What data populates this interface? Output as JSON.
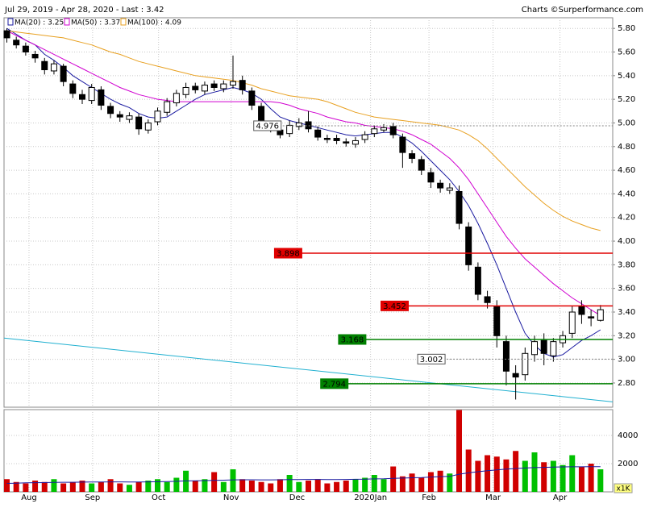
{
  "chart_data": [
    {
      "type": "candlestick",
      "title": "Jul 29, 2019 - Apr 28, 2020 - Last : 3.42",
      "credit": "Charts ©Surperformance.com",
      "xlim": [
        -0.3,
        64.3
      ],
      "xticks": [
        {
          "value": 2.35,
          "label": "Aug"
        },
        {
          "value": 9.1,
          "label": "Sep"
        },
        {
          "value": 16.1,
          "label": "Oct"
        },
        {
          "value": 23.8,
          "label": "Nov"
        },
        {
          "value": 30.8,
          "label": "Dec"
        },
        {
          "value": 38.6,
          "label": "2020Jan"
        },
        {
          "value": 44.8,
          "label": "Feb"
        },
        {
          "value": 51.6,
          "label": "Mar"
        },
        {
          "value": 58.7,
          "label": "Apr"
        }
      ],
      "ylim": [
        2.595,
        5.89
      ],
      "yticks": [
        {
          "value": 2.8,
          "label": "2.80"
        },
        {
          "value": 3.0,
          "label": "3.00"
        },
        {
          "value": 3.2,
          "label": "3.20"
        },
        {
          "value": 3.4,
          "label": "3.40"
        },
        {
          "value": 3.6,
          "label": "3.60"
        },
        {
          "value": 3.8,
          "label": "3.80"
        },
        {
          "value": 4.0,
          "label": "4.00"
        },
        {
          "value": 4.2,
          "label": "4.20"
        },
        {
          "value": 4.4,
          "label": "4.40"
        },
        {
          "value": 4.6,
          "label": "4.60"
        },
        {
          "value": 4.8,
          "label": "4.80"
        },
        {
          "value": 5.0,
          "label": "5.00"
        },
        {
          "value": 5.2,
          "label": "5.20"
        },
        {
          "value": 5.4,
          "label": "5.40"
        },
        {
          "value": 5.6,
          "label": "5.60"
        },
        {
          "value": 5.8,
          "label": "5.80"
        }
      ],
      "grid": true,
      "up_color": "#00c000",
      "down_color": "#d00000",
      "open": [
        5.78,
        5.7,
        5.65,
        5.58,
        5.52,
        5.44,
        5.48,
        5.33,
        5.24,
        5.19,
        5.28,
        5.14,
        5.07,
        5.03,
        5.05,
        4.94,
        5.01,
        5.09,
        5.17,
        5.24,
        5.31,
        5.27,
        5.33,
        5.29,
        5.32,
        5.36,
        5.27,
        5.14,
        4.99,
        4.94,
        4.91,
        4.97,
        5.01,
        4.94,
        4.87,
        4.87,
        4.84,
        4.82,
        4.86,
        4.91,
        4.94,
        4.97,
        4.88,
        4.74,
        4.69,
        4.58,
        4.49,
        4.43,
        4.42,
        4.12,
        3.78,
        3.53,
        3.45,
        3.15,
        2.88,
        2.87,
        3.04,
        3.16,
        3.03,
        3.14,
        3.22,
        3.45,
        3.36,
        3.33
      ],
      "high": [
        5.8,
        5.73,
        5.68,
        5.61,
        5.55,
        5.53,
        5.5,
        5.36,
        5.28,
        5.33,
        5.31,
        5.17,
        5.1,
        5.09,
        5.08,
        5.03,
        5.13,
        5.21,
        5.28,
        5.34,
        5.34,
        5.35,
        5.36,
        5.36,
        5.57,
        5.4,
        5.3,
        5.17,
        5.02,
        4.97,
        5.02,
        5.04,
        5.1,
        4.97,
        4.9,
        4.9,
        4.87,
        4.88,
        4.93,
        4.98,
        4.99,
        5.0,
        4.91,
        4.77,
        4.72,
        4.62,
        4.52,
        4.49,
        4.47,
        4.16,
        3.82,
        3.58,
        3.5,
        3.2,
        2.95,
        3.1,
        3.2,
        3.22,
        3.18,
        3.24,
        3.45,
        3.5,
        3.42,
        3.46
      ],
      "low": [
        5.68,
        5.63,
        5.57,
        5.51,
        5.41,
        5.41,
        5.31,
        5.21,
        5.16,
        5.16,
        5.11,
        5.04,
        5.01,
        5.0,
        4.9,
        4.91,
        4.98,
        5.06,
        5.14,
        5.21,
        5.25,
        5.24,
        5.27,
        5.26,
        5.29,
        5.24,
        5.11,
        4.96,
        4.92,
        4.87,
        4.88,
        4.94,
        4.92,
        4.85,
        4.83,
        4.82,
        4.8,
        4.79,
        4.83,
        4.88,
        4.92,
        4.87,
        4.62,
        4.66,
        4.56,
        4.45,
        4.41,
        4.4,
        4.1,
        3.75,
        3.5,
        3.43,
        3.1,
        2.78,
        2.66,
        2.82,
        2.98,
        2.95,
        2.98,
        3.1,
        3.18,
        3.3,
        3.28,
        3.32
      ],
      "close": [
        5.72,
        5.66,
        5.6,
        5.55,
        5.45,
        5.5,
        5.35,
        5.25,
        5.2,
        5.3,
        5.15,
        5.08,
        5.05,
        5.06,
        4.95,
        5.0,
        5.1,
        5.18,
        5.25,
        5.3,
        5.28,
        5.32,
        5.3,
        5.33,
        5.35,
        5.28,
        5.15,
        5.0,
        4.95,
        4.9,
        4.98,
        5.0,
        4.95,
        4.88,
        4.86,
        4.85,
        4.83,
        4.85,
        4.9,
        4.95,
        4.96,
        4.9,
        4.75,
        4.7,
        4.6,
        4.5,
        4.45,
        4.45,
        4.15,
        3.8,
        3.55,
        3.48,
        3.2,
        2.9,
        2.85,
        3.05,
        3.15,
        3.05,
        3.15,
        3.2,
        3.4,
        3.38,
        3.35,
        3.42
      ],
      "series": [
        {
          "name": "MA(20) : 3.25",
          "color": "#1a1aa0",
          "values": [
            5.8,
            5.75,
            5.7,
            5.66,
            5.58,
            5.53,
            5.47,
            5.4,
            5.35,
            5.3,
            5.25,
            5.2,
            5.16,
            5.13,
            5.08,
            5.05,
            5.04,
            5.05,
            5.1,
            5.15,
            5.2,
            5.24,
            5.26,
            5.28,
            5.3,
            5.28,
            5.25,
            5.2,
            5.12,
            5.05,
            5.02,
            5.0,
            4.98,
            4.96,
            4.94,
            4.92,
            4.9,
            4.89,
            4.9,
            4.91,
            4.92,
            4.92,
            4.88,
            4.83,
            4.76,
            4.68,
            4.6,
            4.52,
            4.42,
            4.3,
            4.15,
            3.98,
            3.8,
            3.6,
            3.4,
            3.22,
            3.12,
            3.05,
            3.02,
            3.04,
            3.1,
            3.16,
            3.2,
            3.25
          ]
        },
        {
          "name": "MA(50) : 3.37",
          "color": "#d000d0",
          "values": [
            5.78,
            5.74,
            5.7,
            5.66,
            5.62,
            5.58,
            5.54,
            5.5,
            5.46,
            5.42,
            5.38,
            5.34,
            5.3,
            5.27,
            5.24,
            5.22,
            5.2,
            5.19,
            5.18,
            5.18,
            5.18,
            5.18,
            5.18,
            5.18,
            5.18,
            5.18,
            5.18,
            5.18,
            5.18,
            5.17,
            5.15,
            5.12,
            5.1,
            5.08,
            5.05,
            5.03,
            5.01,
            5.0,
            4.98,
            4.97,
            4.96,
            4.95,
            4.93,
            4.9,
            4.86,
            4.82,
            4.76,
            4.7,
            4.62,
            4.52,
            4.4,
            4.28,
            4.16,
            4.04,
            3.94,
            3.85,
            3.78,
            3.71,
            3.64,
            3.58,
            3.52,
            3.47,
            3.42,
            3.37
          ]
        },
        {
          "name": "MA(100) : 4.09",
          "color": "#e8a020",
          "values": [
            5.78,
            5.77,
            5.76,
            5.75,
            5.74,
            5.73,
            5.72,
            5.7,
            5.68,
            5.66,
            5.63,
            5.6,
            5.58,
            5.55,
            5.52,
            5.5,
            5.48,
            5.46,
            5.44,
            5.42,
            5.4,
            5.39,
            5.38,
            5.37,
            5.36,
            5.34,
            5.32,
            5.29,
            5.27,
            5.25,
            5.23,
            5.22,
            5.21,
            5.2,
            5.18,
            5.15,
            5.12,
            5.09,
            5.07,
            5.05,
            5.04,
            5.03,
            5.02,
            5.01,
            5.0,
            4.99,
            4.98,
            4.96,
            4.94,
            4.9,
            4.85,
            4.78,
            4.7,
            4.62,
            4.54,
            4.46,
            4.39,
            4.32,
            4.26,
            4.21,
            4.17,
            4.14,
            4.11,
            4.09
          ]
        }
      ],
      "levels": [
        {
          "value": 4.976,
          "from": 26.2,
          "color": "#808080",
          "style": "dotted"
        },
        {
          "value": 3.898,
          "from": 28.4,
          "color": "#e00000",
          "style": "solid"
        },
        {
          "value": 3.452,
          "from": 39.7,
          "color": "#e00000",
          "style": "solid"
        },
        {
          "value": 3.168,
          "from": 35.2,
          "color": "#008000",
          "style": "solid"
        },
        {
          "value": 3.002,
          "from": 43.6,
          "color": "#808080",
          "style": "dotted"
        },
        {
          "value": 2.794,
          "from": 33.3,
          "color": "#008000",
          "style": "solid"
        }
      ],
      "trendline": {
        "color": "#20b0d0",
        "x": [
          -0.3,
          64.3
        ],
        "y": [
          3.18,
          2.64
        ]
      }
    },
    {
      "type": "volume",
      "unit_label": "x1K",
      "ylim": [
        0,
        5830
      ],
      "yticks": [
        2000,
        4000
      ],
      "values": [
        900,
        700,
        600,
        800,
        700,
        900,
        600,
        700,
        800,
        600,
        700,
        900,
        600,
        500,
        700,
        800,
        900,
        700,
        1000,
        1500,
        800,
        900,
        1400,
        700,
        1600,
        900,
        800,
        700,
        600,
        900,
        1200,
        700,
        800,
        900,
        600,
        700,
        800,
        900,
        1000,
        1200,
        900,
        1800,
        1100,
        1300,
        1000,
        1400,
        1500,
        1300,
        5800,
        3000,
        2200,
        2600,
        2500,
        2300,
        2900,
        2200,
        2800,
        2100,
        2200,
        1900,
        2600,
        1800,
        2000,
        1600
      ],
      "ma_color": "#1a1aa0",
      "ma": [
        600,
        620,
        640,
        650,
        660,
        670,
        680,
        680,
        690,
        700,
        700,
        710,
        710,
        700,
        700,
        710,
        720,
        730,
        750,
        780,
        790,
        800,
        820,
        830,
        850,
        860,
        860,
        850,
        850,
        860,
        870,
        870,
        880,
        880,
        870,
        870,
        880,
        890,
        900,
        920,
        930,
        960,
        980,
        1000,
        1020,
        1050,
        1080,
        1100,
        1250,
        1350,
        1430,
        1500,
        1560,
        1610,
        1660,
        1690,
        1720,
        1740,
        1760,
        1770,
        1780,
        1780,
        1790,
        1790
      ]
    }
  ]
}
